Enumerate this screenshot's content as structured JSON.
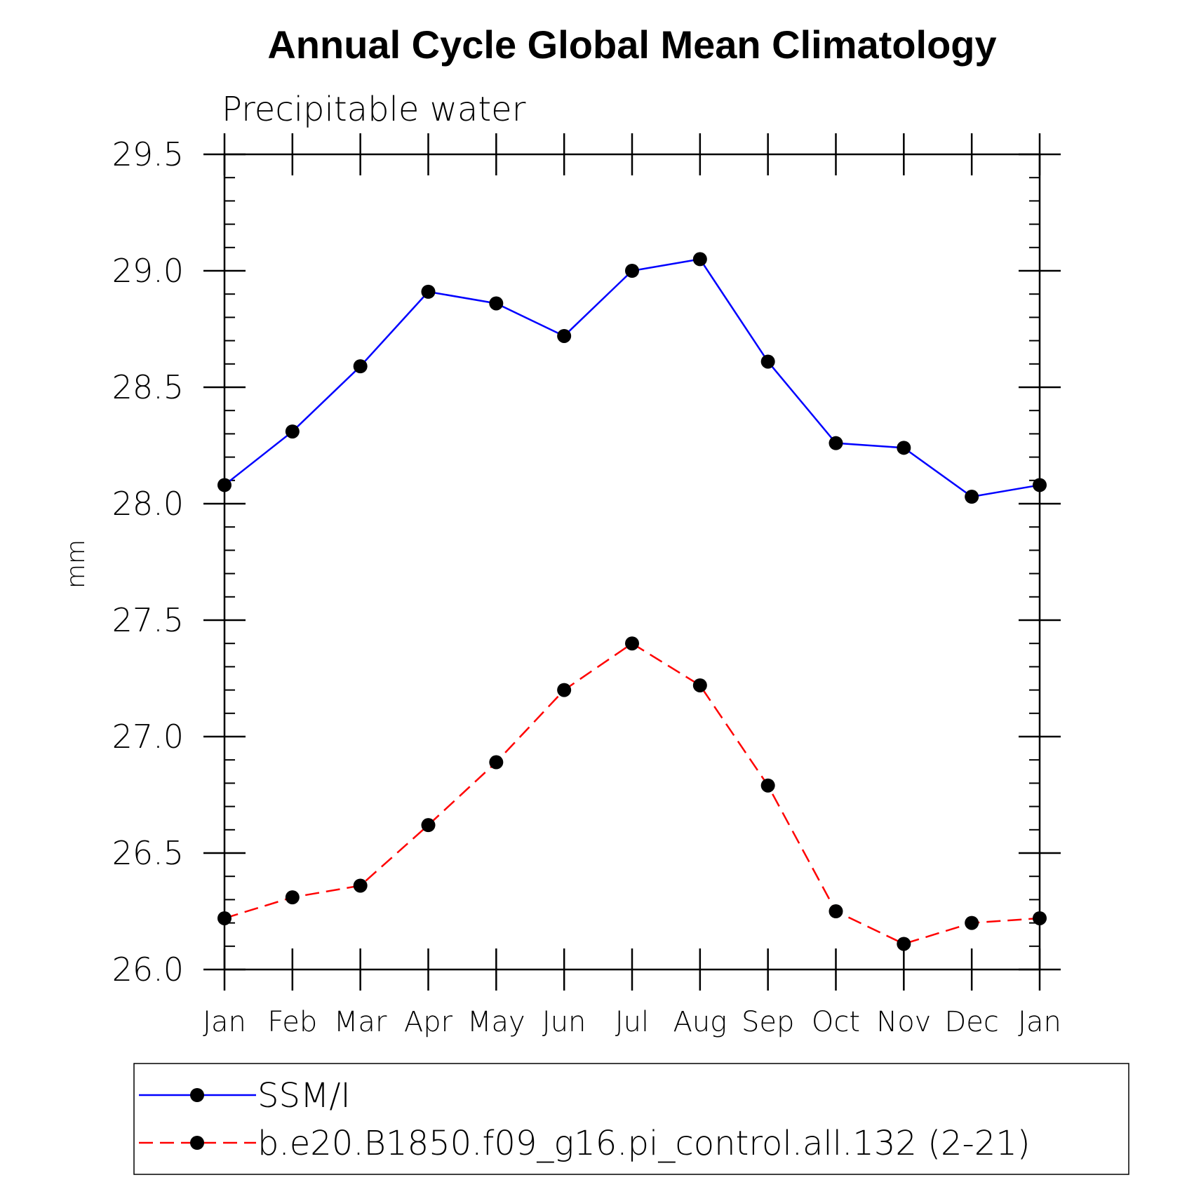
{
  "chart_data": {
    "type": "line",
    "title": "Annual Cycle Global Mean Climatology",
    "subtitle": "Precipitable water",
    "xlabel": "",
    "ylabel": "mm",
    "categories": [
      "Jan",
      "Feb",
      "Mar",
      "Apr",
      "May",
      "Jun",
      "Jul",
      "Aug",
      "Sep",
      "Oct",
      "Nov",
      "Dec",
      "Jan"
    ],
    "ylim": [
      26.0,
      29.5
    ],
    "y_ticks": [
      "26.0",
      "26.5",
      "27.0",
      "27.5",
      "28.0",
      "28.5",
      "29.0",
      "29.5"
    ],
    "y_tick_values": [
      26.0,
      26.5,
      27.0,
      27.5,
      28.0,
      28.5,
      29.0,
      29.5
    ],
    "y_minor_step": 0.1,
    "grid": false,
    "legend_position": "bottom",
    "series": [
      {
        "name": "SSM/I",
        "color": "#0000ff",
        "line_style": "solid",
        "marker": "filled-circle",
        "marker_color": "#000000",
        "values": [
          28.08,
          28.31,
          28.59,
          28.91,
          28.86,
          28.72,
          29.0,
          29.05,
          28.61,
          28.26,
          28.24,
          28.03,
          28.08
        ]
      },
      {
        "name": "b.e20.B1850.f09_g16.pi_control.all.132 (2-21)",
        "color": "#ff0000",
        "line_style": "dashed",
        "marker": "filled-circle",
        "marker_color": "#000000",
        "values": [
          26.22,
          26.31,
          26.36,
          26.62,
          26.89,
          27.2,
          27.4,
          27.22,
          26.79,
          26.25,
          26.11,
          26.2,
          26.22
        ]
      }
    ]
  }
}
